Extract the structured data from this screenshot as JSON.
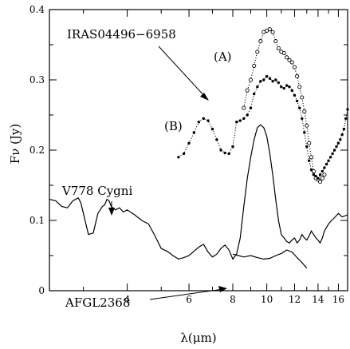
{
  "chart_data": {
    "type": "line",
    "title": "",
    "xlabel": "λ(μm)",
    "ylabel": "Fν (Jy)",
    "x_scale": "log",
    "xlim": [
      2.4,
      17
    ],
    "ylim": [
      0,
      0.4
    ],
    "x_tick_labels": [
      "4",
      "6",
      "8",
      "10",
      "12",
      "14",
      "16"
    ],
    "y_tick_labels": [
      "0",
      "0.1",
      "0.2",
      "0.3",
      "0.4"
    ],
    "annotations": [
      {
        "text": "IRAS04496−6958"
      },
      {
        "text": "(A)"
      },
      {
        "text": "(B)"
      },
      {
        "text": "V778 Cygni"
      },
      {
        "text": "AFGL2368"
      }
    ],
    "series": [
      {
        "name": "V778 Cygni",
        "style": "solid",
        "x": [
          2.4,
          2.5,
          2.6,
          2.7,
          2.8,
          2.9,
          2.95,
          3.0,
          3.1,
          3.2,
          3.3,
          3.4,
          3.45,
          3.5,
          3.55,
          3.6,
          3.7,
          3.8,
          3.9,
          4.0,
          4.2,
          4.4,
          4.6,
          4.8,
          5.0,
          5.2,
          5.4,
          5.6,
          5.8,
          6.0,
          6.2,
          6.4,
          6.6,
          6.8,
          7.0,
          7.2,
          7.4,
          7.6,
          7.8,
          8.0,
          8.2,
          8.4,
          8.6,
          8.8,
          9.0,
          9.2,
          9.4,
          9.6,
          9.8,
          10.0,
          10.2,
          10.4,
          10.6,
          10.8,
          11.0,
          11.2,
          11.4,
          11.6,
          11.8,
          12.0,
          12.2,
          12.4,
          12.6,
          12.8,
          13.0,
          13.2,
          13.4,
          13.6,
          13.8,
          14.0,
          14.2,
          14.4,
          14.6,
          14.8,
          15.0,
          15.3,
          15.6,
          16.0,
          16.4,
          17.0
        ],
        "y": [
          0.13,
          0.128,
          0.12,
          0.118,
          0.128,
          0.132,
          0.125,
          0.11,
          0.08,
          0.082,
          0.11,
          0.12,
          0.122,
          0.13,
          0.128,
          0.12,
          0.115,
          0.118,
          0.112,
          0.115,
          0.108,
          0.1,
          0.095,
          0.078,
          0.06,
          0.056,
          0.05,
          0.045,
          0.047,
          0.05,
          0.056,
          0.062,
          0.066,
          0.055,
          0.048,
          0.052,
          0.06,
          0.065,
          0.058,
          0.045,
          0.052,
          0.075,
          0.12,
          0.16,
          0.19,
          0.215,
          0.232,
          0.236,
          0.232,
          0.22,
          0.195,
          0.165,
          0.13,
          0.1,
          0.08,
          0.075,
          0.07,
          0.068,
          0.072,
          0.075,
          0.068,
          0.072,
          0.08,
          0.075,
          0.072,
          0.078,
          0.085,
          0.08,
          0.075,
          0.072,
          0.068,
          0.075,
          0.085,
          0.09,
          0.095,
          0.1,
          0.104,
          0.11,
          0.105,
          0.108
        ]
      },
      {
        "name": "AFGL2368",
        "style": "solid",
        "x": [
          8.0,
          8.3,
          8.6,
          9.0,
          9.4,
          9.8,
          10.2,
          10.6,
          11.0,
          11.4,
          11.8,
          12.2,
          12.6,
          13.0
        ],
        "y": [
          0.052,
          0.05,
          0.048,
          0.05,
          0.047,
          0.045,
          0.046,
          0.05,
          0.053,
          0.058,
          0.055,
          0.047,
          0.04,
          0.032
        ]
      },
      {
        "name": "IRAS04496−6958 (A)",
        "style": "dotted-open-circles",
        "x": [
          8.6,
          8.8,
          9.0,
          9.2,
          9.4,
          9.6,
          9.8,
          10.0,
          10.2,
          10.4,
          10.6,
          10.8,
          11.0,
          11.2,
          11.4,
          11.6,
          11.8,
          12.0,
          12.2,
          12.4,
          12.6,
          12.8,
          13.0,
          13.2,
          13.4,
          13.6,
          13.8,
          14.0,
          14.2,
          14.4,
          14.6
        ],
        "y": [
          0.26,
          0.285,
          0.3,
          0.32,
          0.34,
          0.355,
          0.368,
          0.37,
          0.372,
          0.368,
          0.355,
          0.345,
          0.34,
          0.338,
          0.332,
          0.328,
          0.325,
          0.318,
          0.305,
          0.29,
          0.275,
          0.255,
          0.235,
          0.21,
          0.19,
          0.17,
          0.16,
          0.158,
          0.155,
          0.16,
          0.165
        ]
      },
      {
        "name": "IRAS04496−6958 (B)",
        "style": "dotted-filled-dots",
        "x": [
          5.6,
          5.8,
          6.0,
          6.2,
          6.4,
          6.6,
          6.8,
          7.0,
          7.2,
          7.4,
          7.6,
          7.8,
          8.0,
          8.2,
          8.4,
          8.6,
          8.8,
          9.0,
          9.2,
          9.4,
          9.6,
          9.8,
          10.0,
          10.2,
          10.4,
          10.6,
          10.8,
          11.0,
          11.2,
          11.4,
          11.6,
          11.8,
          12.0,
          12.2,
          12.4,
          12.6,
          12.8,
          13.0,
          13.2,
          13.4,
          13.6,
          13.8,
          14.0,
          14.2,
          14.4,
          14.6,
          14.8,
          15.0,
          15.2,
          15.4,
          15.6,
          15.8,
          16.0,
          16.2,
          16.4,
          16.6,
          16.8,
          17.0
        ],
        "y": [
          0.19,
          0.195,
          0.21,
          0.225,
          0.24,
          0.245,
          0.242,
          0.23,
          0.215,
          0.2,
          0.196,
          0.195,
          0.205,
          0.24,
          0.242,
          0.245,
          0.25,
          0.26,
          0.28,
          0.29,
          0.298,
          0.3,
          0.305,
          0.302,
          0.298,
          0.3,
          0.296,
          0.29,
          0.288,
          0.292,
          0.29,
          0.285,
          0.278,
          0.27,
          0.26,
          0.245,
          0.225,
          0.205,
          0.185,
          0.172,
          0.165,
          0.163,
          0.16,
          0.165,
          0.17,
          0.175,
          0.18,
          0.185,
          0.19,
          0.195,
          0.2,
          0.205,
          0.21,
          0.215,
          0.222,
          0.23,
          0.245,
          0.258
        ]
      }
    ]
  }
}
